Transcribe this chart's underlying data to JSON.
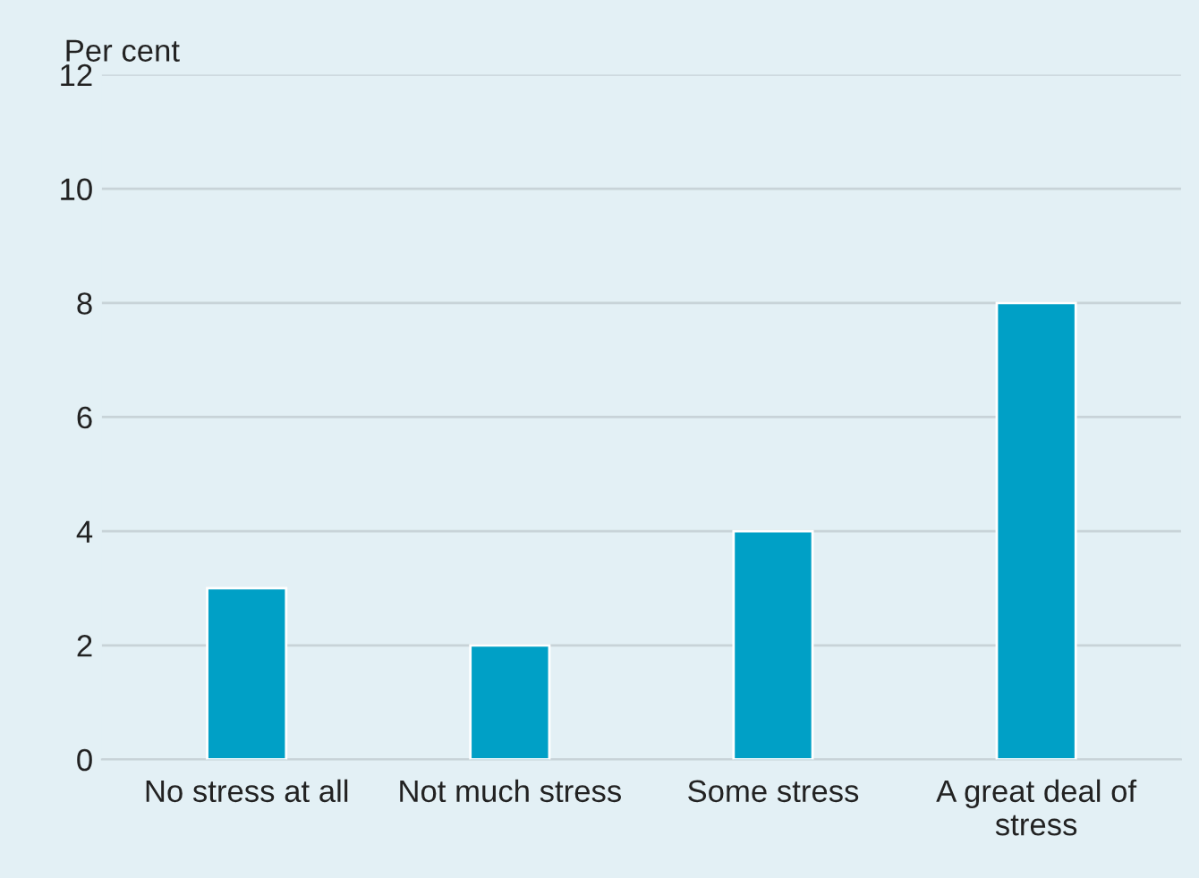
{
  "chart_data": {
    "type": "bar",
    "ylabel": "Per cent",
    "categories": [
      "No stress at all",
      "Not much stress",
      "Some stress",
      "A great deal of stress"
    ],
    "values": [
      3,
      2,
      4,
      8
    ],
    "color": "#00a0c6",
    "ylim": [
      0,
      12
    ],
    "yticks": [
      0,
      2,
      4,
      6,
      8,
      10,
      12
    ],
    "grid": "y",
    "legend": false
  }
}
